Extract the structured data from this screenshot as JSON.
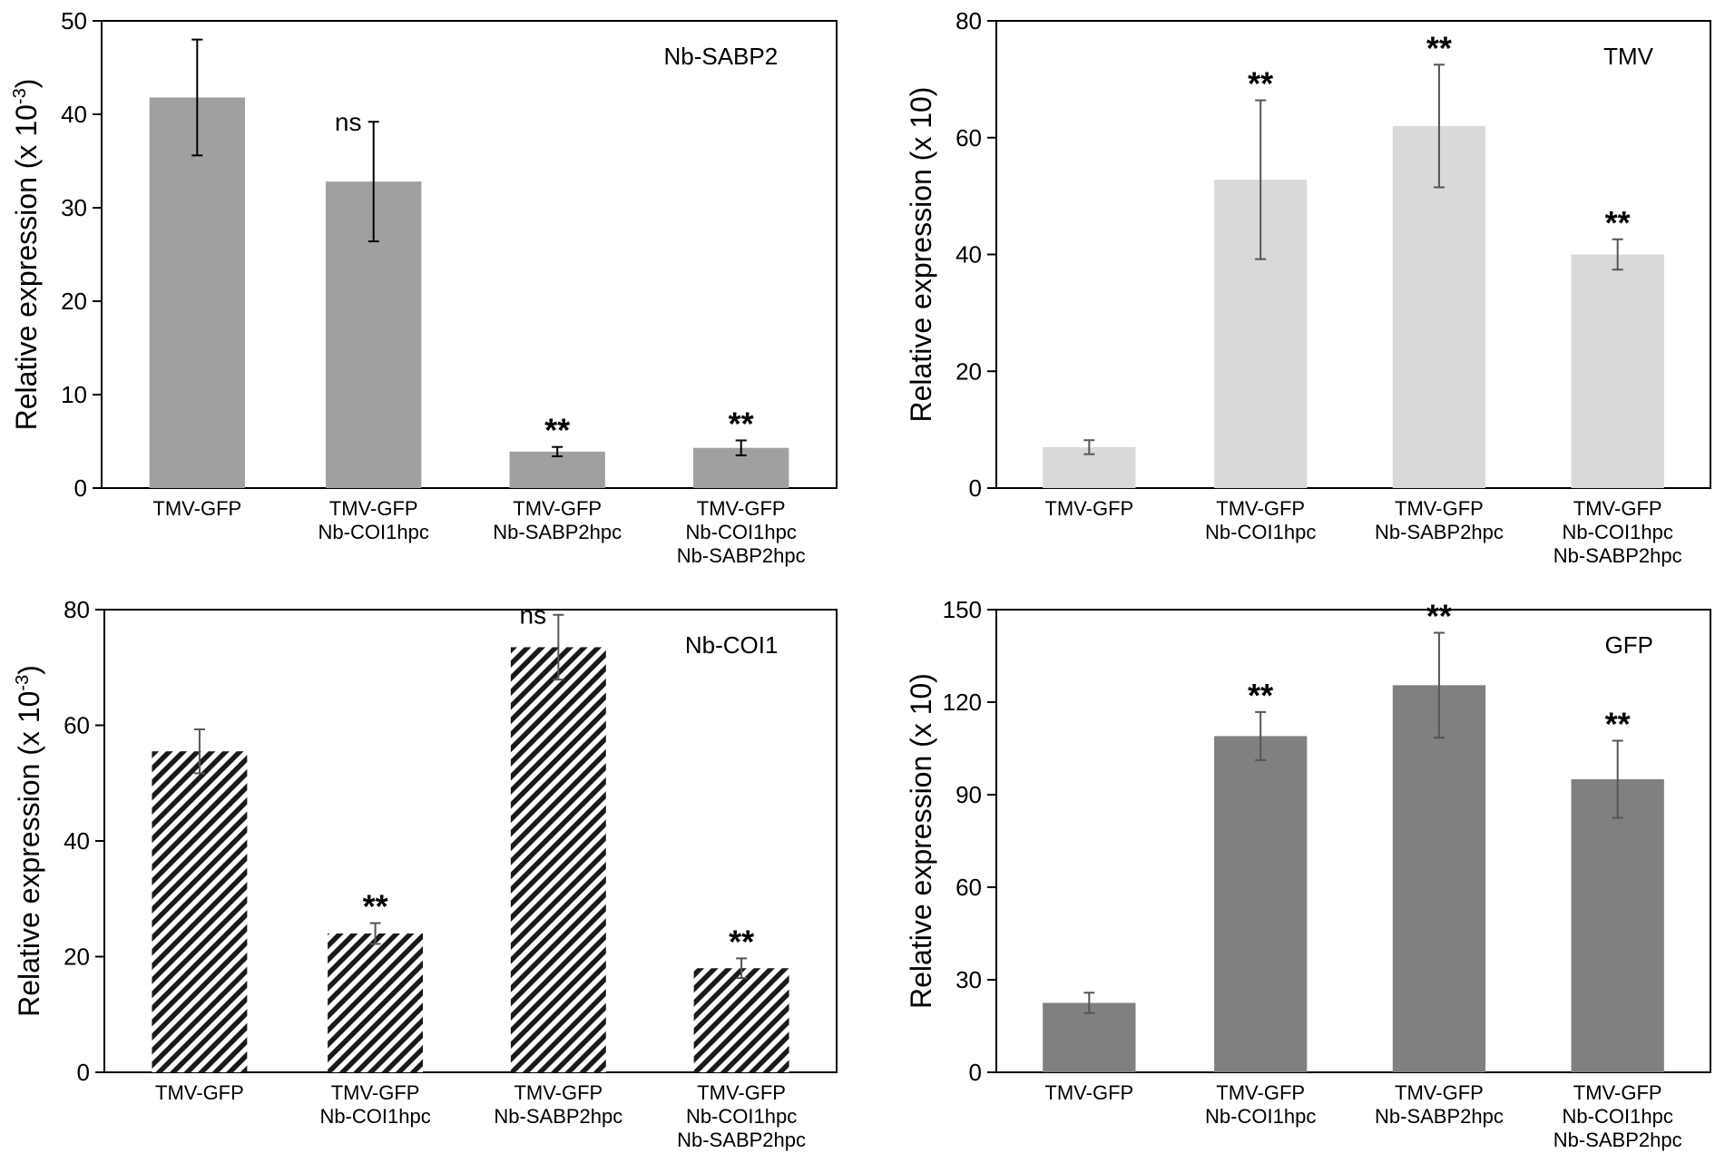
{
  "chart_data": [
    {
      "id": "nb-sabp2",
      "type": "bar",
      "title": "Nb-SABP2",
      "ylabel": "Relative expression (x 10",
      "ylabel_sup": "-3",
      "ylabel_end": ")",
      "ylim": [
        0,
        50
      ],
      "yticks": [
        0,
        10,
        20,
        30,
        40,
        50
      ],
      "categories": [
        [
          "TMV-GFP"
        ],
        [
          "TMV-GFP",
          "Nb-COI1hpc"
        ],
        [
          "TMV-GFP",
          "Nb-SABP2hpc"
        ],
        [
          "TMV-GFP",
          "Nb-COI1hpc",
          "Nb-SABP2hpc"
        ]
      ],
      "values": [
        41.8,
        32.8,
        3.9,
        4.3
      ],
      "errors": [
        6.2,
        6.4,
        0.5,
        0.8
      ],
      "significance": [
        "",
        "ns",
        "**",
        "**"
      ],
      "bar_color": "#a0a0a0",
      "error_color": "#000000",
      "pattern": "solid"
    },
    {
      "id": "tmv",
      "type": "bar",
      "title": "TMV",
      "ylabel": "Relative expression (x 10)",
      "ylim": [
        0,
        80
      ],
      "yticks": [
        0,
        20,
        40,
        60,
        80
      ],
      "categories": [
        [
          "TMV-GFP"
        ],
        [
          "TMV-GFP",
          "Nb-COI1hpc"
        ],
        [
          "TMV-GFP",
          "Nb-SABP2hpc"
        ],
        [
          "TMV-GFP",
          "Nb-COI1hpc",
          "Nb-SABP2hpc"
        ]
      ],
      "values": [
        7.0,
        52.8,
        62.0,
        40.0
      ],
      "errors": [
        1.2,
        13.6,
        10.5,
        2.6
      ],
      "significance": [
        "",
        "**",
        "**",
        "**"
      ],
      "bar_color": "#d9d9d9",
      "error_color": "#555555",
      "pattern": "solid"
    },
    {
      "id": "nb-coi1",
      "type": "bar",
      "title": "Nb-COI1",
      "ylabel": "Relative expression (x 10",
      "ylabel_sup": "-3",
      "ylabel_end": ")",
      "ylim": [
        0,
        80
      ],
      "yticks": [
        0,
        20,
        40,
        60,
        80
      ],
      "categories": [
        [
          "TMV-GFP"
        ],
        [
          "TMV-GFP",
          "Nb-COI1hpc"
        ],
        [
          "TMV-GFP",
          "Nb-SABP2hpc"
        ],
        [
          "TMV-GFP",
          "Nb-COI1hpc",
          "Nb-SABP2hpc"
        ]
      ],
      "values": [
        55.5,
        24.0,
        73.5,
        18.0
      ],
      "errors": [
        3.8,
        1.8,
        5.6,
        1.7
      ],
      "significance": [
        "",
        "**",
        "ns",
        "**"
      ],
      "bar_color": "#1a1a1a",
      "error_color": "#555555",
      "pattern": "hatch"
    },
    {
      "id": "gfp",
      "type": "bar",
      "title": "GFP",
      "ylabel": "Relative expression (x 10)",
      "ylim": [
        0,
        150
      ],
      "yticks": [
        0,
        30,
        60,
        90,
        120,
        150
      ],
      "categories": [
        [
          "TMV-GFP"
        ],
        [
          "TMV-GFP",
          "Nb-COI1hpc"
        ],
        [
          "TMV-GFP",
          "Nb-SABP2hpc"
        ],
        [
          "TMV-GFP",
          "Nb-COI1hpc",
          "Nb-SABP2hpc"
        ]
      ],
      "values": [
        22.5,
        109.0,
        125.5,
        95.0
      ],
      "errors": [
        3.3,
        7.8,
        17.0,
        12.5
      ],
      "significance": [
        "",
        "**",
        "**",
        "**"
      ],
      "bar_color": "#808080",
      "error_color": "#555555",
      "pattern": "solid"
    }
  ]
}
